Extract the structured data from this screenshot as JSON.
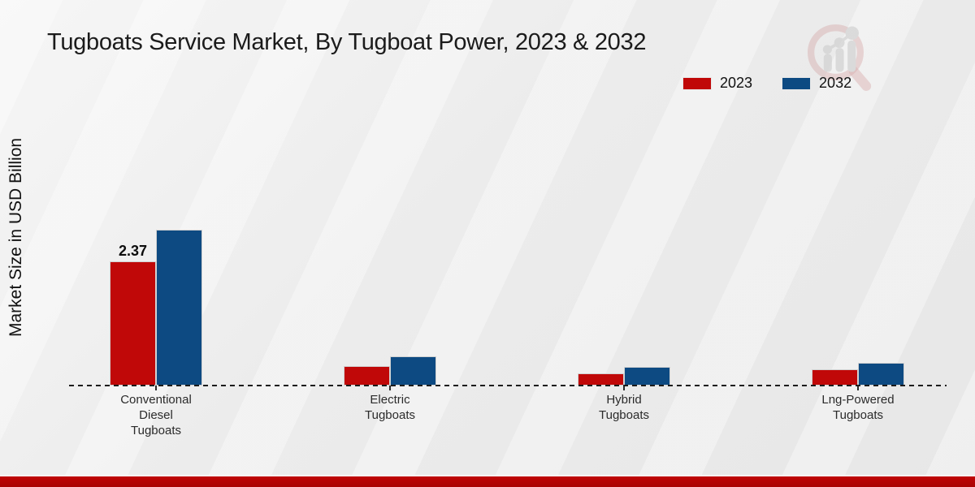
{
  "title": "Tugboats Service Market, By Tugboat Power, 2023 & 2032",
  "y_axis_label": "Market Size in USD Billion",
  "legend": [
    {
      "label": "2023",
      "color": "#c00808"
    },
    {
      "label": "2032",
      "color": "#0d4a82"
    }
  ],
  "colors": {
    "bar_2023": "#c00808",
    "bar_2032": "#0d4a82",
    "footer_band": "#b30404",
    "background": "#ececec"
  },
  "watermark_icon": "magnifier-growth-chart-logo",
  "chart_data": {
    "type": "bar",
    "title": "Tugboats Service Market, By Tugboat Power, 2023 & 2032",
    "ylabel": "Market Size in USD Billion",
    "xlabel": "",
    "ylim": [
      0,
      3.2
    ],
    "grid": false,
    "legend_position": "top-right",
    "categories": [
      "Conventional\nDiesel\nTugboats",
      "Electric\nTugboats",
      "Hybrid\nTugboats",
      "Lng-Powered\nTugboats"
    ],
    "series": [
      {
        "name": "2023",
        "color": "#c00808",
        "values": [
          2.37,
          0.37,
          0.23,
          0.31
        ],
        "bar_labels": [
          "2.37",
          "",
          "",
          ""
        ]
      },
      {
        "name": "2032",
        "color": "#0d4a82",
        "values": [
          2.97,
          0.56,
          0.36,
          0.43
        ],
        "bar_labels": [
          "",
          "",
          "",
          ""
        ]
      }
    ]
  }
}
